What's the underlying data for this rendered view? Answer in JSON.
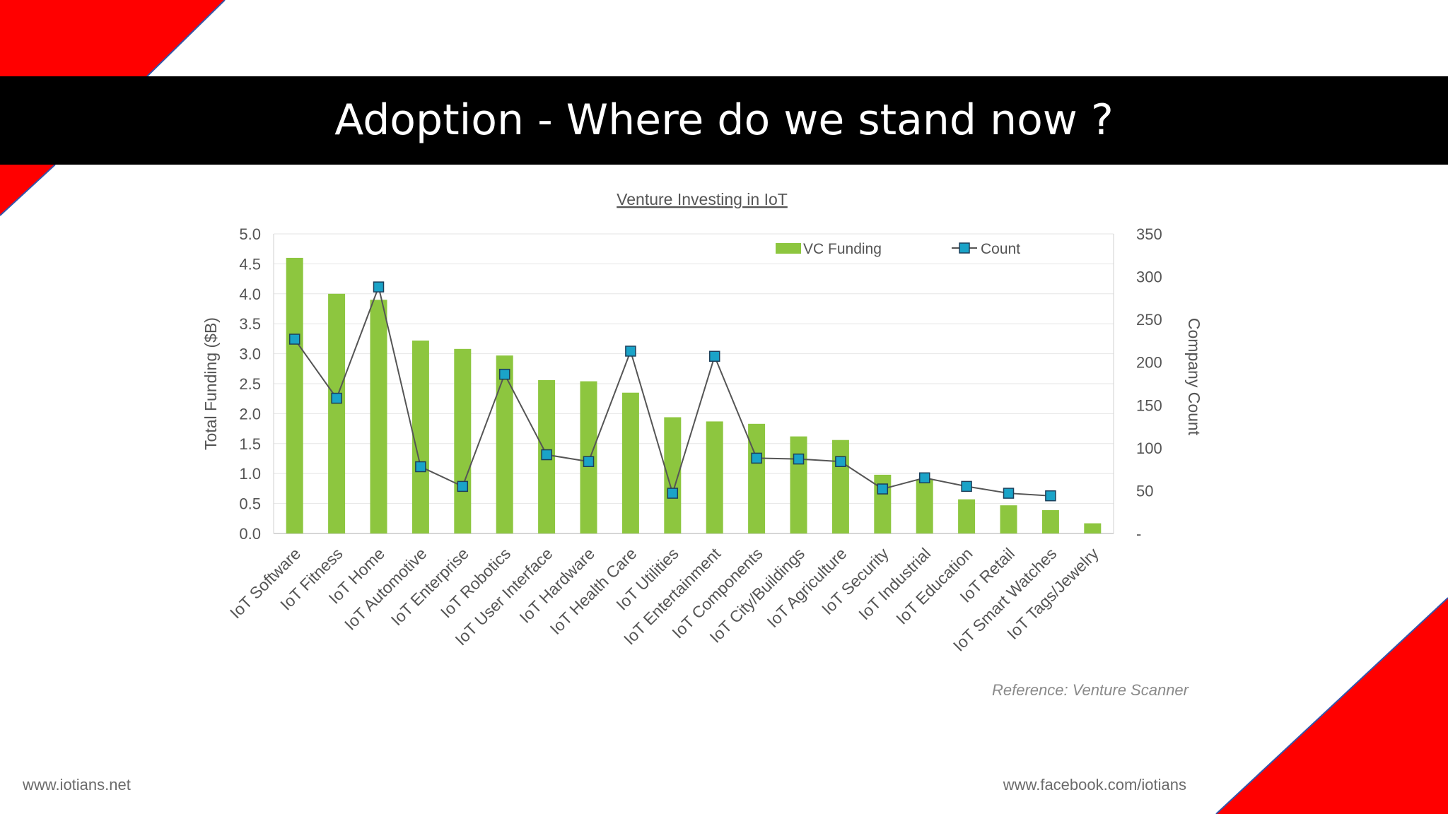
{
  "slide": {
    "title": "Adoption - Where do we stand now ?",
    "reference": "Reference: Venture Scanner",
    "footer_left": "www.iotians.net",
    "footer_right": "www.facebook.com/iotians"
  },
  "colors": {
    "accent_red": "#ff0000",
    "title_bar": "#000000",
    "bar_fill": "#8dc63f",
    "count_marker": "#1aa3c8",
    "count_line": "#555555"
  },
  "chart_data": {
    "type": "bar",
    "title": "Venture Investing in IoT",
    "ylabel": "Total Funding ($B)",
    "y2label": "Company Count",
    "ylim": [
      0,
      5
    ],
    "y2lim": [
      0,
      350
    ],
    "yticks": [
      "0.0",
      "0.5",
      "1.0",
      "1.5",
      "2.0",
      "2.5",
      "3.0",
      "3.5",
      "4.0",
      "4.5",
      "5.0"
    ],
    "y2ticks": [
      "-",
      "50",
      "100",
      "150",
      "200",
      "250",
      "300",
      "350"
    ],
    "legend_position": "top-right",
    "grid": true,
    "categories": [
      "IoT Software",
      "IoT Fitness",
      "IoT Home",
      "IoT Automotive",
      "IoT Enterprise",
      "IoT Robotics",
      "IoT User Interface",
      "IoT Hardware",
      "IoT Health Care",
      "IoT Utilities",
      "IoT Entertainment",
      "IoT Components",
      "IoT City/Buildings",
      "IoT Agriculture",
      "IoT Security",
      "IoT Industrial",
      "IoT Education",
      "IoT Retail",
      "IoT Smart Watches",
      "IoT Tags/Jewelry"
    ],
    "series": [
      {
        "name": "VC Funding",
        "type": "bar",
        "axis": "left",
        "values": [
          4.6,
          4.0,
          3.9,
          3.22,
          3.08,
          2.97,
          2.56,
          2.54,
          2.35,
          1.94,
          1.87,
          1.83,
          1.62,
          1.56,
          0.98,
          0.9,
          0.57,
          0.47,
          0.39,
          0.17
        ]
      },
      {
        "name": "Count",
        "type": "line",
        "axis": "right",
        "values": [
          227,
          158,
          288,
          78,
          55,
          186,
          92,
          84,
          213,
          47,
          207,
          88,
          87,
          84,
          52,
          65,
          55,
          47,
          44,
          null
        ]
      }
    ]
  }
}
